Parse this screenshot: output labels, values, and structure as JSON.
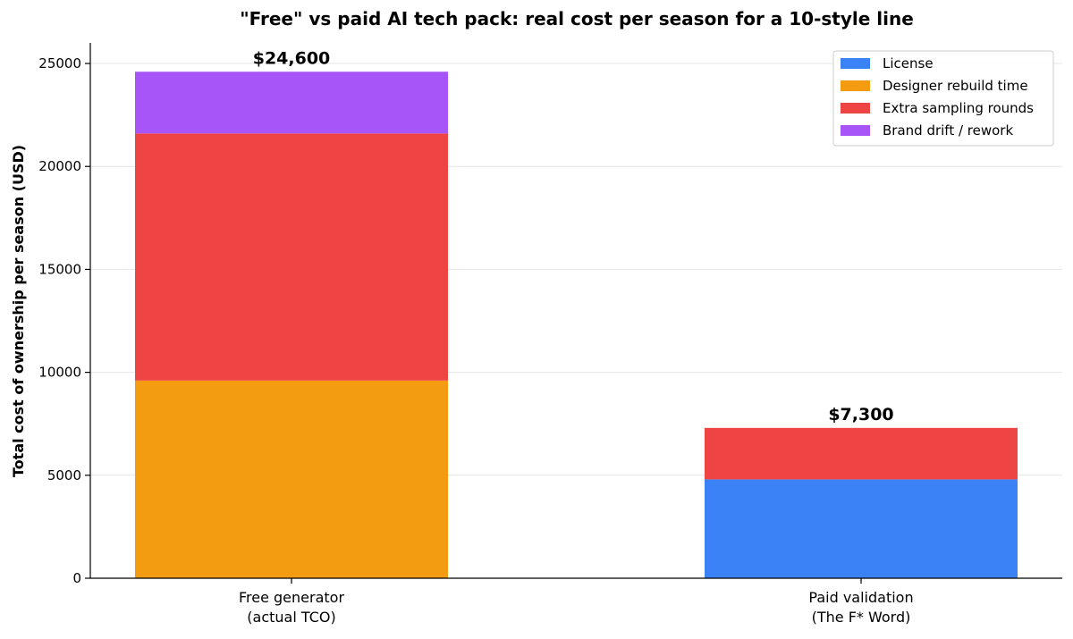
{
  "chart_data": {
    "type": "bar",
    "stacked": true,
    "title": "\"Free\" vs paid AI tech pack: real cost per season for a 10-style line",
    "xlabel": "",
    "ylabel": "Total cost of ownership per season (USD)",
    "ylim": [
      0,
      26000
    ],
    "yticks": [
      0,
      5000,
      10000,
      15000,
      20000,
      25000
    ],
    "grid": true,
    "legend_position": "top-right",
    "categories": [
      [
        "Free generator",
        "(actual TCO)"
      ],
      [
        "Paid validation",
        "(The F* Word)"
      ]
    ],
    "series": [
      {
        "name": "License",
        "color": "#3b82f6",
        "values": [
          0,
          4800
        ]
      },
      {
        "name": "Designer rebuild time",
        "color": "#f39c12",
        "values": [
          9600,
          0
        ]
      },
      {
        "name": "Extra sampling rounds",
        "color": "#ef4444",
        "values": [
          12000,
          2500
        ]
      },
      {
        "name": "Brand drift / rework",
        "color": "#a855f7",
        "values": [
          3000,
          0
        ]
      }
    ],
    "totals": [
      "$24,600",
      "$7,300"
    ]
  }
}
